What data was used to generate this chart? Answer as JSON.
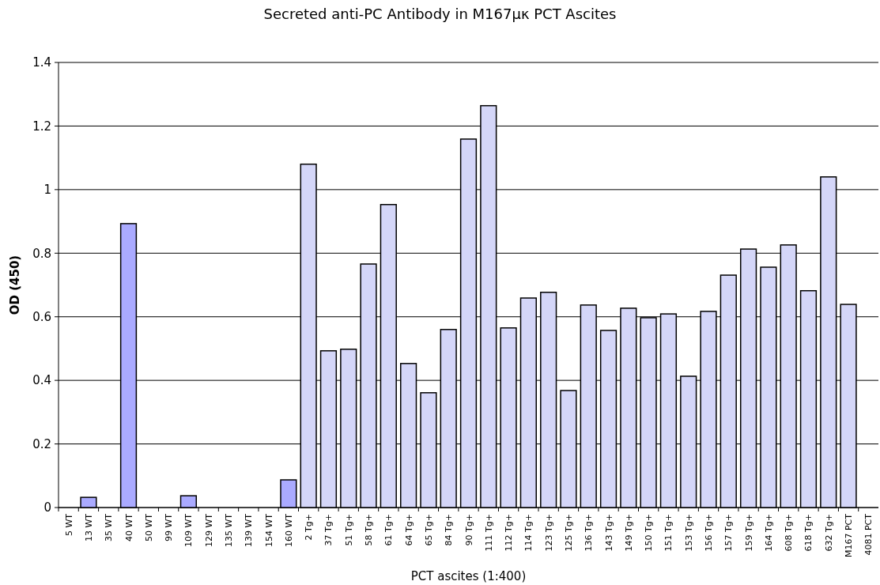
{
  "chart_data": {
    "type": "bar",
    "title": "Secreted anti-PC Antibody in M167μκ PCT Ascites",
    "xlabel": "PCT ascites (1:400)",
    "ylabel": "OD (450)",
    "categories": [
      "5 WT",
      "13 WT",
      "35 WT",
      "40 WT",
      "50 WT",
      "99 WT",
      "109 WT",
      "129 WT",
      "135 WT",
      "139 WT",
      "154 WT",
      "160 WT",
      "2  Tg+",
      "37 Tg+",
      "51 Tg+",
      "58 Tg+",
      "61 Tg+",
      "64 Tg+",
      "65 Tg+",
      "84 Tg+",
      "90 Tg+",
      "111 Tg+",
      "112 Tg+",
      "114 Tg+",
      "123 Tg+",
      "125 Tg+",
      "136 Tg+",
      "143 Tg+",
      "149 Tg+",
      "150 Tg+",
      "151 Tg+",
      "153 Tg+",
      "156 Tg+",
      "157 Tg+",
      "159 Tg+",
      "164 Tg+",
      "608 Tg+",
      "618 Tg+",
      "632 Tg+",
      "M167 PCT",
      "4081 PCT"
    ],
    "values": [
      0,
      0.032,
      0,
      0.893,
      0,
      0,
      0.037,
      0,
      0,
      0,
      0,
      0.087,
      1.08,
      0.493,
      0.498,
      0.766,
      0.953,
      0.453,
      0.361,
      0.56,
      1.159,
      1.264,
      0.565,
      0.659,
      0.677,
      0.368,
      0.637,
      0.557,
      0.627,
      0.597,
      0.609,
      0.413,
      0.617,
      0.731,
      0.813,
      0.756,
      0.826,
      0.682,
      1.04,
      0.639,
      0
    ],
    "colors": [
      "#aaaaff",
      "#aaaaff",
      "#aaaaff",
      "#aaaaff",
      "#aaaaff",
      "#aaaaff",
      "#aaaaff",
      "#aaaaff",
      "#aaaaff",
      "#aaaaff",
      "#aaaaff",
      "#aaaaff",
      "#d4d6f8",
      "#d4d6f8",
      "#d4d6f8",
      "#d4d6f8",
      "#d4d6f8",
      "#d4d6f8",
      "#d4d6f8",
      "#d4d6f8",
      "#d4d6f8",
      "#d4d6f8",
      "#d4d6f8",
      "#d4d6f8",
      "#d4d6f8",
      "#d4d6f8",
      "#d4d6f8",
      "#d4d6f8",
      "#d4d6f8",
      "#d4d6f8",
      "#d4d6f8",
      "#d4d6f8",
      "#d4d6f8",
      "#d4d6f8",
      "#d4d6f8",
      "#d4d6f8",
      "#d4d6f8",
      "#d4d6f8",
      "#d4d6f8",
      "#d4d6f8",
      "#d4d6f8"
    ],
    "ylim": [
      0,
      1.4
    ],
    "yticks": [
      0,
      0.2,
      0.4,
      0.6,
      0.8,
      1,
      1.2,
      1.4
    ],
    "grid": "y"
  }
}
